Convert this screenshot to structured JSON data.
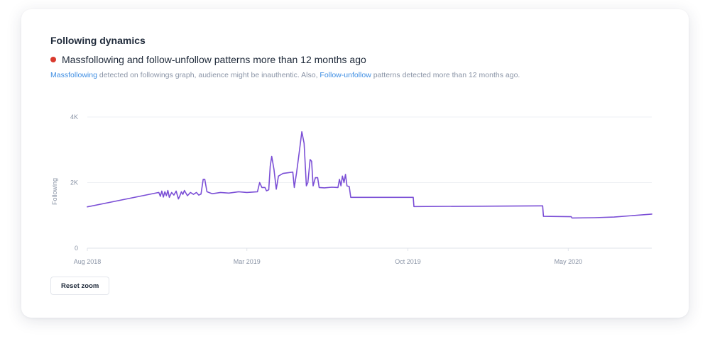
{
  "card": {
    "title": "Following dynamics",
    "alert": {
      "status_color": "#d93a2e",
      "title": "Massfollowing and follow-unfollow patterns more than 12 months ago",
      "desc_link_1": "Massfollowing",
      "desc_text_1": " detected on followings graph, audience might be inauthentic. Also, ",
      "desc_link_2": "Follow-unfollow",
      "desc_text_2": " patterns detected more than 12 months ago."
    },
    "reset_zoom_label": "Reset zoom"
  },
  "chart_data": {
    "type": "line",
    "title": "",
    "xlabel": "",
    "ylabel": "Following",
    "ylim": [
      0,
      4000
    ],
    "yticks": [
      {
        "value": 0,
        "label": "0"
      },
      {
        "value": 2000,
        "label": "2K"
      },
      {
        "value": 4000,
        "label": "4K"
      }
    ],
    "xlim": [
      "2018-08-01",
      "2020-08-20"
    ],
    "xticks": [
      {
        "value": "2018-08-01",
        "label": "Aug 2018"
      },
      {
        "value": "2019-03-01",
        "label": "Mar 2019"
      },
      {
        "value": "2019-10-01",
        "label": "Oct 2019"
      },
      {
        "value": "2020-05-01",
        "label": "May 2020"
      }
    ],
    "grid": true,
    "line_color": "#7b4fd6",
    "series": [
      {
        "points": [
          [
            "2018-08-01",
            1260
          ],
          [
            "2018-11-04",
            1700
          ],
          [
            "2018-11-06",
            1580
          ],
          [
            "2018-11-08",
            1740
          ],
          [
            "2018-11-10",
            1560
          ],
          [
            "2018-11-12",
            1720
          ],
          [
            "2018-11-14",
            1600
          ],
          [
            "2018-11-16",
            1760
          ],
          [
            "2018-11-18",
            1550
          ],
          [
            "2018-11-21",
            1700
          ],
          [
            "2018-11-24",
            1620
          ],
          [
            "2018-11-27",
            1740
          ],
          [
            "2018-11-30",
            1500
          ],
          [
            "2018-12-02",
            1600
          ],
          [
            "2018-12-04",
            1720
          ],
          [
            "2018-12-06",
            1640
          ],
          [
            "2018-12-08",
            1760
          ],
          [
            "2018-12-12",
            1600
          ],
          [
            "2018-12-16",
            1700
          ],
          [
            "2018-12-20",
            1640
          ],
          [
            "2018-12-24",
            1700
          ],
          [
            "2018-12-27",
            1620
          ],
          [
            "2018-12-30",
            1650
          ],
          [
            "2019-01-02",
            2100
          ],
          [
            "2019-01-04",
            2100
          ],
          [
            "2019-01-07",
            1720
          ],
          [
            "2019-01-14",
            1660
          ],
          [
            "2019-01-25",
            1700
          ],
          [
            "2019-02-05",
            1680
          ],
          [
            "2019-02-18",
            1720
          ],
          [
            "2019-03-01",
            1700
          ],
          [
            "2019-03-15",
            1720
          ],
          [
            "2019-03-18",
            2000
          ],
          [
            "2019-03-21",
            1850
          ],
          [
            "2019-03-25",
            1850
          ],
          [
            "2019-03-27",
            1750
          ],
          [
            "2019-03-30",
            1780
          ],
          [
            "2019-04-01",
            2500
          ],
          [
            "2019-04-03",
            2800
          ],
          [
            "2019-04-06",
            2400
          ],
          [
            "2019-04-09",
            1800
          ],
          [
            "2019-04-12",
            2200
          ],
          [
            "2019-04-18",
            2280
          ],
          [
            "2019-04-25",
            2300
          ],
          [
            "2019-05-01",
            2320
          ],
          [
            "2019-05-03",
            1850
          ],
          [
            "2019-05-06",
            2300
          ],
          [
            "2019-05-10",
            3000
          ],
          [
            "2019-05-13",
            3550
          ],
          [
            "2019-05-16",
            3200
          ],
          [
            "2019-05-19",
            1900
          ],
          [
            "2019-05-21",
            2000
          ],
          [
            "2019-05-24",
            2700
          ],
          [
            "2019-05-26",
            2650
          ],
          [
            "2019-05-28",
            1900
          ],
          [
            "2019-05-31",
            2150
          ],
          [
            "2019-06-03",
            2150
          ],
          [
            "2019-06-05",
            1850
          ],
          [
            "2019-06-12",
            1840
          ],
          [
            "2019-06-22",
            1860
          ],
          [
            "2019-06-30",
            1850
          ],
          [
            "2019-07-02",
            2100
          ],
          [
            "2019-07-04",
            1900
          ],
          [
            "2019-07-06",
            2200
          ],
          [
            "2019-07-08",
            2000
          ],
          [
            "2019-07-10",
            2250
          ],
          [
            "2019-07-12",
            1900
          ],
          [
            "2019-07-15",
            1880
          ],
          [
            "2019-07-17",
            1550
          ],
          [
            "2019-10-08",
            1550
          ],
          [
            "2019-10-09",
            1270
          ],
          [
            "2020-03-28",
            1290
          ],
          [
            "2020-03-29",
            970
          ],
          [
            "2020-05-05",
            960
          ],
          [
            "2020-05-06",
            920
          ],
          [
            "2020-06-05",
            930
          ],
          [
            "2020-07-01",
            950
          ],
          [
            "2020-08-20",
            1040
          ]
        ]
      }
    ]
  }
}
